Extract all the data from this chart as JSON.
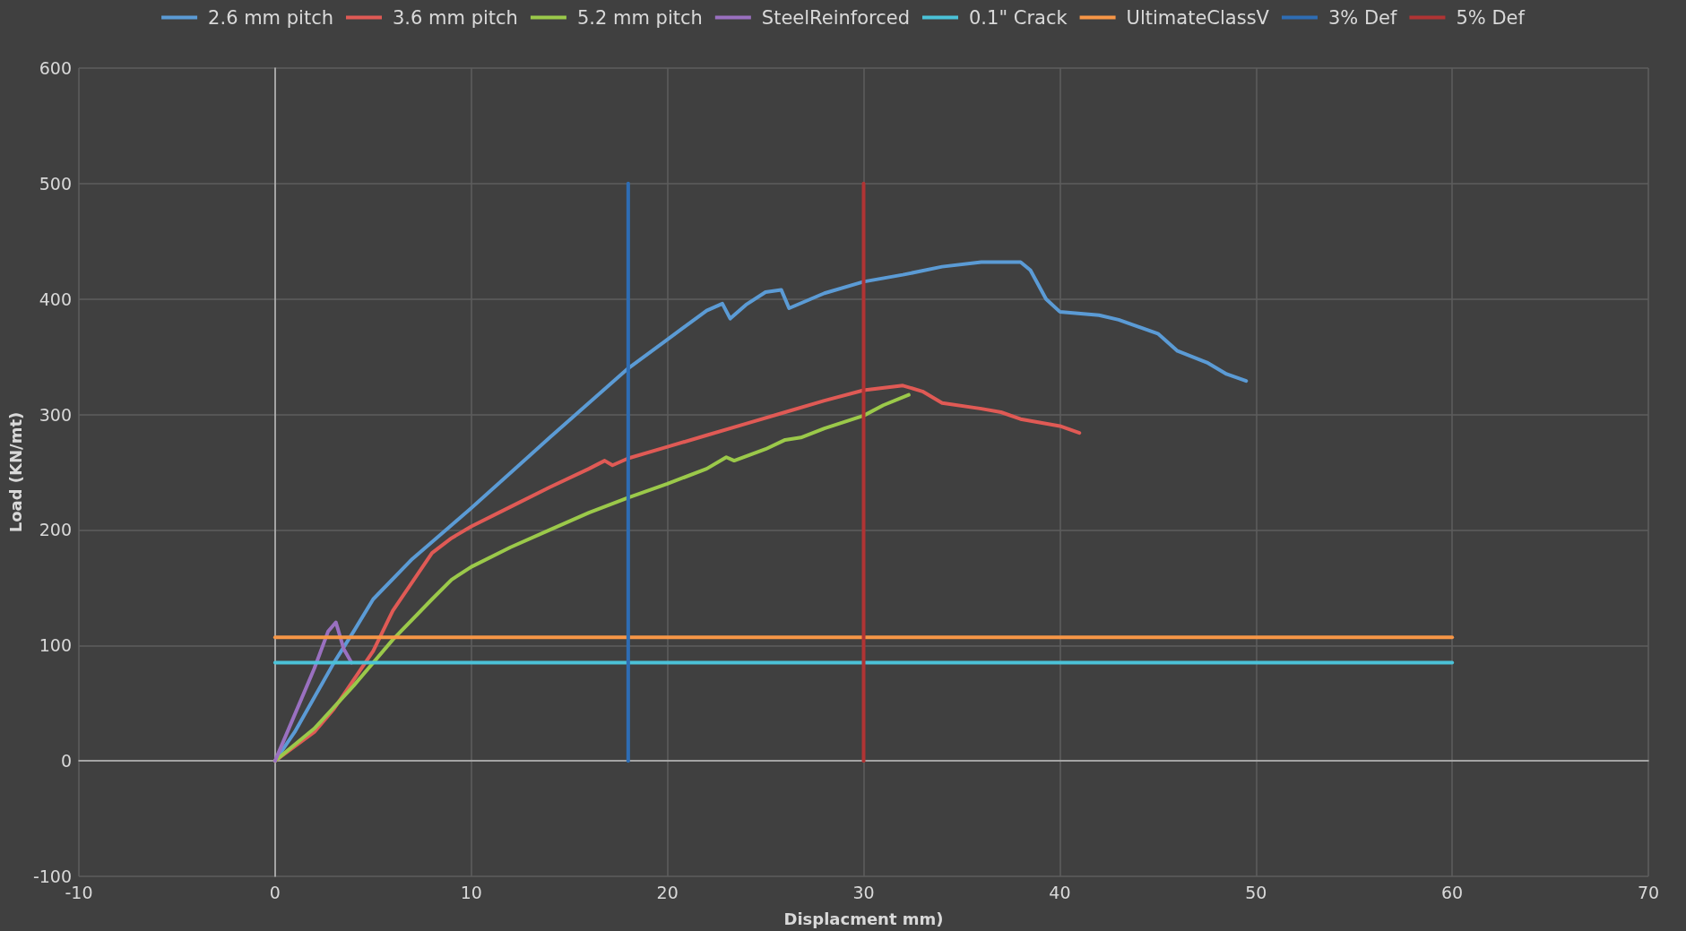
{
  "chart_data": {
    "type": "line",
    "xlabel": "Displacment mm)",
    "ylabel": "Load (KN/mt)",
    "xlim": [
      -10,
      70
    ],
    "xticks": [
      -10,
      0,
      10,
      20,
      30,
      40,
      50,
      60,
      70
    ],
    "ylim": [
      -100,
      600
    ],
    "yticks": [
      -100,
      0,
      100,
      200,
      300,
      400,
      500,
      600
    ],
    "grid": true,
    "legend": "top",
    "marker": "none",
    "line_style": "solid",
    "series": [
      {
        "name": "2.6 mm pitch",
        "color": "#5b9bd5",
        "x": [
          0,
          1,
          2,
          3,
          4,
          5,
          7,
          10,
          14,
          18,
          20,
          22,
          22.8,
          23.2,
          24,
          25,
          25.8,
          26.2,
          28,
          30,
          32,
          34,
          36,
          38,
          38.5,
          39.3,
          40,
          42,
          43,
          45,
          46,
          47.5,
          48.5,
          49.5
        ],
        "values": [
          0,
          25,
          55,
          85,
          112,
          140,
          175,
          219,
          280,
          340,
          365,
          390,
          396,
          383,
          395,
          406,
          408,
          392,
          405,
          415,
          421,
          428,
          432,
          432,
          425,
          400,
          389,
          386,
          382,
          370,
          355,
          345,
          335,
          329
        ]
      },
      {
        "name": "3.6 mm pitch",
        "color": "#e05a55",
        "x": [
          0,
          2,
          3,
          4,
          5,
          6,
          7,
          8,
          9,
          10,
          12,
          14,
          16,
          16.8,
          17.2,
          18,
          20,
          22,
          24,
          26,
          28,
          30,
          32,
          33,
          34,
          36,
          37,
          38,
          40,
          41
        ],
        "values": [
          0,
          25,
          45,
          70,
          95,
          130,
          155,
          180,
          193,
          203,
          220,
          237,
          253,
          260,
          256,
          262,
          272,
          282,
          292,
          302,
          312,
          321,
          325,
          320,
          310,
          305,
          302,
          296,
          290,
          284
        ]
      },
      {
        "name": "5.2 mm pitch",
        "color": "#9bc94a",
        "x": [
          0,
          2,
          4,
          6,
          8,
          9,
          10,
          12,
          14,
          16,
          18,
          20,
          22,
          23,
          23.4,
          25,
          26,
          26.8,
          28,
          30,
          31,
          32.3
        ],
        "values": [
          0,
          28,
          65,
          105,
          140,
          157,
          168,
          185,
          200,
          215,
          228,
          240,
          253,
          263,
          260,
          270,
          278,
          280,
          288,
          299,
          308,
          317
        ]
      },
      {
        "name": "SteelReinforced",
        "color": "#9a70c0",
        "x": [
          0,
          1,
          2,
          2.7,
          3.1,
          3.5,
          3.9
        ],
        "values": [
          0,
          40,
          80,
          112,
          120,
          97,
          85
        ]
      },
      {
        "name": "0.1\" Crack",
        "color": "#4bc2d8",
        "x": [
          0,
          60
        ],
        "values": [
          85,
          85
        ]
      },
      {
        "name": "UltimateClassV",
        "color": "#f79646",
        "x": [
          0,
          60
        ],
        "values": [
          107,
          107
        ]
      },
      {
        "name": "3% Def",
        "color": "#2e6db4",
        "x": [
          18,
          18
        ],
        "values": [
          0,
          500
        ]
      },
      {
        "name": "5% Def",
        "color": "#b03434",
        "x": [
          30,
          30
        ],
        "values": [
          0,
          500
        ]
      }
    ]
  }
}
